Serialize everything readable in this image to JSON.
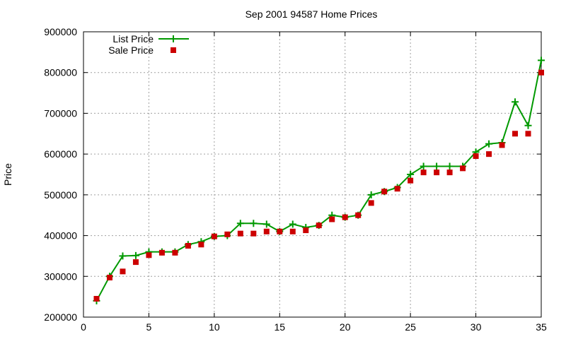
{
  "chart_data": {
    "type": "line",
    "title": "Sep 2001 94587 Home Prices",
    "xlabel": "",
    "ylabel": "Price",
    "xlim": [
      0,
      35
    ],
    "ylim": [
      200000,
      900000
    ],
    "x_ticks": [
      0,
      5,
      10,
      15,
      20,
      25,
      30,
      35
    ],
    "y_ticks": [
      200000,
      300000,
      400000,
      500000,
      600000,
      700000,
      800000,
      900000
    ],
    "grid": true,
    "legend_position": "top-left",
    "series": [
      {
        "name": "List Price",
        "style": "line-plus",
        "color": "#009900",
        "x": [
          1,
          2,
          3,
          4,
          5,
          6,
          7,
          8,
          9,
          10,
          11,
          12,
          13,
          14,
          15,
          16,
          17,
          18,
          19,
          20,
          21,
          22,
          23,
          24,
          25,
          26,
          27,
          28,
          29,
          30,
          31,
          32,
          33,
          34,
          35
        ],
        "y": [
          240000,
          300000,
          350000,
          351000,
          360000,
          360000,
          360000,
          378000,
          385000,
          398000,
          400000,
          430000,
          430000,
          428000,
          410000,
          428000,
          420000,
          425000,
          450000,
          445000,
          450000,
          500000,
          508000,
          518000,
          550000,
          570000,
          570000,
          570000,
          570000,
          605000,
          625000,
          628000,
          728000,
          670000,
          830000
        ]
      },
      {
        "name": "Sale Price",
        "style": "square-markers",
        "color": "#cc0000",
        "x": [
          1,
          2,
          3,
          4,
          5,
          6,
          7,
          8,
          9,
          10,
          11,
          12,
          13,
          14,
          15,
          16,
          17,
          18,
          19,
          20,
          21,
          22,
          23,
          24,
          25,
          26,
          27,
          28,
          29,
          30,
          31,
          32,
          33,
          34,
          35
        ],
        "y": [
          245000,
          297000,
          312000,
          335000,
          352000,
          358000,
          358000,
          375000,
          378000,
          398000,
          403000,
          405000,
          405000,
          410000,
          410000,
          410000,
          413000,
          425000,
          440000,
          445000,
          450000,
          480000,
          508000,
          515000,
          535000,
          555000,
          555000,
          555000,
          565000,
          595000,
          600000,
          622000,
          650000,
          650000,
          800000
        ]
      }
    ]
  }
}
